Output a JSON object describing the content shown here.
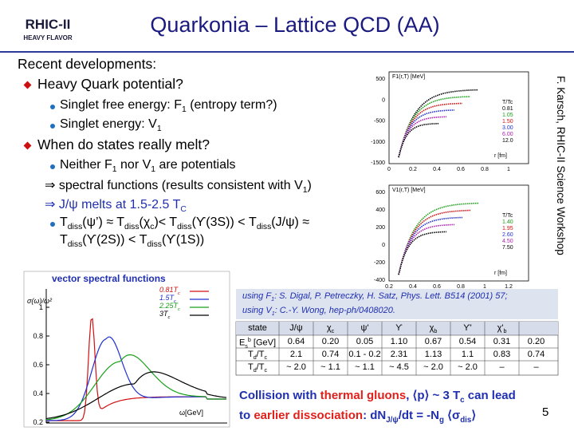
{
  "header": {
    "logo": "RHIC-II",
    "logo_sub": "HEAVY FLAVOR",
    "title": "Quarkonia – Lattice QCD (AA)"
  },
  "sidebar": "F. Karsch, RHIC-II Science Workshop",
  "outline": {
    "heading": "Recent developments:",
    "items": [
      {
        "level": 1,
        "segments": [
          {
            "text": "Heavy Quark potential?"
          }
        ]
      },
      {
        "level": 2,
        "segments": [
          {
            "text": "Singlet free energy: F"
          },
          {
            "text": "1",
            "sub": true
          },
          {
            "text": " (entropy term?)"
          }
        ]
      },
      {
        "level": 2,
        "segments": [
          {
            "text": "Singlet energy: V"
          },
          {
            "text": "1",
            "sub": true
          }
        ]
      },
      {
        "level": 1,
        "segments": [
          {
            "text": "When do states really melt?"
          }
        ]
      },
      {
        "level": 2,
        "segments": [
          {
            "text": "Neither F"
          },
          {
            "text": "1",
            "sub": true
          },
          {
            "text": " nor V"
          },
          {
            "text": "1",
            "sub": true
          },
          {
            "text": " are potentials"
          }
        ]
      },
      {
        "level": 0,
        "segments": [
          {
            "text": "⇒ spectral functions (results consistent with V"
          },
          {
            "text": "1",
            "sub": true
          },
          {
            "text": ")"
          }
        ]
      },
      {
        "level": 0,
        "segments": [
          {
            "text": "⇒ J/ψ melts at 1.5-2.5 T",
            "color": "#1f2fb0"
          },
          {
            "text": "C",
            "sub": true,
            "color": "#1f2fb0"
          }
        ]
      },
      {
        "level": 2,
        "segments": [
          {
            "text": "T"
          },
          {
            "text": "diss",
            "sub": true
          },
          {
            "text": "(ψ’) ≈ T"
          },
          {
            "text": "diss",
            "sub": true
          },
          {
            "text": "(χ"
          },
          {
            "text": "c",
            "sub": true
          },
          {
            "text": ")< T"
          },
          {
            "text": "diss",
            "sub": true
          },
          {
            "text": "(ϒ(3S)) < T"
          },
          {
            "text": "diss",
            "sub": true
          },
          {
            "text": "(J/ψ) ≈"
          }
        ]
      },
      {
        "level": 3,
        "segments": [
          {
            "text": "T"
          },
          {
            "text": "diss",
            "sub": true
          },
          {
            "text": "(ϒ(2S)) < T"
          },
          {
            "text": "diss",
            "sub": true
          },
          {
            "text": "(ϒ(1S))"
          }
        ]
      }
    ]
  },
  "potential_plots": [
    {
      "ylabel": "F1(r,T) [MeV]",
      "xlabel": "r [fm]",
      "yticks": [
        "500",
        "0",
        "-500",
        "-1000",
        "-1500"
      ],
      "xticks": [
        "0",
        "0.2",
        "0.4",
        "0.6",
        "0.8",
        "1"
      ],
      "legend_title": "T/Tc",
      "legend": [
        "0.81",
        "1.05",
        "1.50",
        "3.00",
        "6.00",
        "12.0"
      ],
      "colors": [
        "#000000",
        "#1aa01a",
        "#d01010",
        "#2030d0",
        "#b020b0",
        "#000000"
      ]
    },
    {
      "ylabel": "V1(r,T) [MeV]",
      "xlabel": "r [fm]",
      "yticks": [
        "600",
        "400",
        "200",
        "0",
        "-200",
        "-400"
      ],
      "xticks": [
        "0.2",
        "0.4",
        "0.6",
        "0.8",
        "1",
        "1.2"
      ],
      "legend_title": "T/Tc",
      "legend": [
        "1.40",
        "1.95",
        "2.60",
        "4.50",
        "7.50"
      ],
      "colors": [
        "#1aa01a",
        "#d01010",
        "#2030d0",
        "#b020b0",
        "#000000"
      ]
    }
  ],
  "spectral_plot": {
    "title": "vector spectral functions",
    "ylabel": "σ(ω)/ω²",
    "xlabel": "ω[GeV]",
    "yticks": [
      "1",
      "0.8",
      "0.6",
      "0.4",
      "0.2"
    ],
    "legend": [
      {
        "segments": [
          {
            "text": "0.81T"
          },
          {
            "text": "c",
            "sub": true
          }
        ],
        "color": "#d01010"
      },
      {
        "segments": [
          {
            "text": "1.5T"
          },
          {
            "text": "c",
            "sub": true
          }
        ],
        "color": "#2030d0"
      },
      {
        "segments": [
          {
            "text": "2.25T"
          },
          {
            "text": "c",
            "sub": true
          }
        ],
        "color": "#1aa01a"
      },
      {
        "segments": [
          {
            "text": "3T"
          },
          {
            "text": "c",
            "sub": true
          }
        ],
        "color": "#000000"
      }
    ]
  },
  "references": [
    [
      {
        "text": "using F"
      },
      {
        "text": "1",
        "sub": true
      },
      {
        "text": ":  S. Digal, P. Petreczky, H. Satz, Phys. Lett. B514 (2001) 57;"
      }
    ],
    [
      {
        "text": "using V"
      },
      {
        "text": "1",
        "sub": true
      },
      {
        "text": ":  C.-Y. Wong, hep-ph/0408020."
      }
    ]
  ],
  "table": {
    "header": [
      "state",
      "J/ψ",
      [
        {
          "text": "χ"
        },
        {
          "text": "c",
          "sub": true
        }
      ],
      "ψ'",
      "ϒ",
      [
        {
          "text": "χ"
        },
        {
          "text": "b",
          "sub": true
        }
      ],
      "ϒ'",
      [
        {
          "text": "χ'"
        },
        {
          "text": "b",
          "sub": true
        }
      ]
    ],
    "rows": [
      {
        "label": [
          {
            "text": "E"
          },
          {
            "text": "s",
            "sub": true
          },
          {
            "text": "b",
            "sup": true
          },
          {
            "text": " [GeV]"
          }
        ],
        "cells": [
          "0.64",
          "0.20",
          "0.05",
          "1.10",
          "0.67",
          "0.54",
          "0.31",
          "0.20"
        ]
      },
      {
        "label": [
          {
            "text": "T"
          },
          {
            "text": "d",
            "sub": true
          },
          {
            "text": "/T"
          },
          {
            "text": "c",
            "sub": true
          }
        ],
        "cells": [
          "2.1",
          "0.74",
          "0.1 - 0.2",
          "2.31",
          "1.13",
          "1.1",
          "0.83",
          "0.74"
        ]
      },
      {
        "label": [
          {
            "text": "T"
          },
          {
            "text": "d",
            "sub": true
          },
          {
            "text": "/T"
          },
          {
            "text": "c",
            "sub": true
          }
        ],
        "cells": [
          "~ 2.0",
          "~ 1.1",
          "~ 1.1",
          "~ 4.5",
          "~ 2.0",
          "~ 2.0",
          "–",
          "–"
        ]
      }
    ]
  },
  "footer": {
    "lines": [
      [
        {
          "text": "Collision with "
        },
        {
          "text": "thermal gluons",
          "color": "#e0201b"
        },
        {
          "text": ", ⟨p⟩ ~ 3 T"
        },
        {
          "text": "c",
          "sub": true
        },
        {
          "text": " can lead"
        }
      ],
      [
        {
          "text": "to "
        },
        {
          "text": "earlier dissociation",
          "color": "#e0201b"
        },
        {
          "text": ": dN"
        },
        {
          "text": "J/ψ",
          "sub": true
        },
        {
          "text": "/dt = -N"
        },
        {
          "text": "g",
          "sub": true
        },
        {
          "text": " ⟨σ"
        },
        {
          "text": "dis",
          "sub": true
        },
        {
          "text": "⟩"
        }
      ]
    ],
    "page": "5"
  }
}
